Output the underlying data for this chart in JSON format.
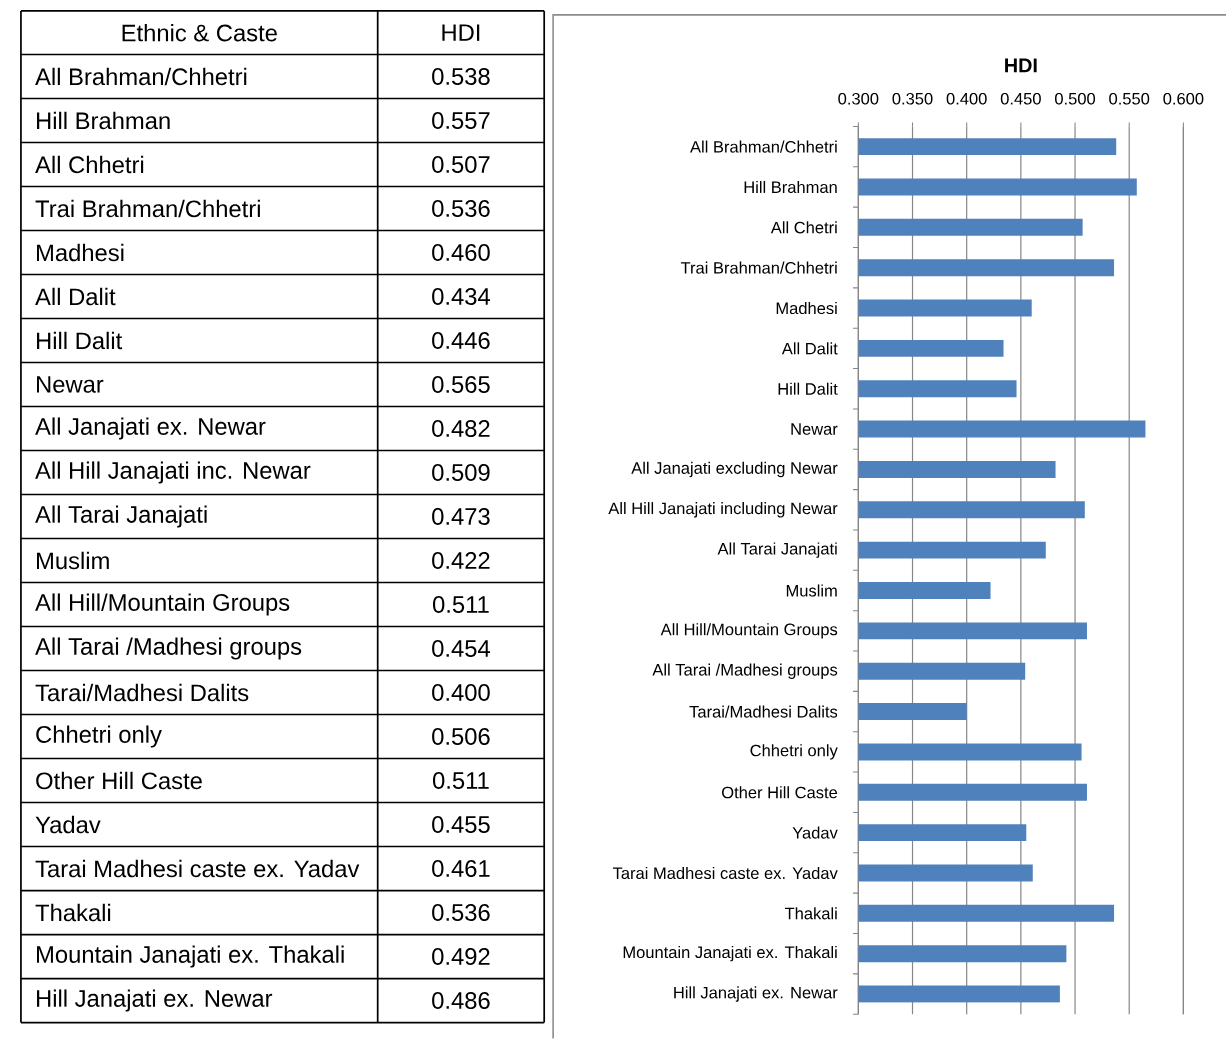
{
  "chart_data": [
    {
      "type": "other",
      "annotations": [
        "Ethnic & Caste",
        "HDI"
      ],
      "categories": [
        "All Brahman/Chhetri",
        "Hill Brahman",
        "All Chhetri",
        "Trai Brahman/Chhetri",
        "Madhesi",
        "All Dalit",
        "Hill Dalit",
        "Newar",
        "All Janajati ex. Newar",
        "All Hill Janajati inc. Newar",
        "All Tarai Janajati",
        "Muslim",
        "All Hill/Mountain Groups",
        "All Tarai /Madhesi groups",
        "Tarai/Madhesi Dalits",
        "Chhetri only",
        "Other Hill Caste",
        "Yadav",
        "Tarai Madhesi caste ex. Yadav",
        "Thakali",
        "Mountain Janajati ex. Thakali",
        "Hill Janajati ex. Newar"
      ],
      "values": [
        0.538,
        0.557,
        0.507,
        0.536,
        0.46,
        0.434,
        0.446,
        0.565,
        0.482,
        0.509,
        0.473,
        0.422,
        0.511,
        0.454,
        0.4,
        0.506,
        0.511,
        0.455,
        0.461,
        0.536,
        0.492,
        0.486
      ],
      "value_labels": [
        "0.538",
        "0.557",
        "0.507",
        "0.536",
        "0.460",
        "0.434",
        "0.446",
        "0.565",
        "0.482",
        "0.509",
        "0.473",
        "0.422",
        "0.511",
        "0.454",
        "0.400",
        "0.506",
        "0.511",
        "0.455",
        "0.461",
        "0.536",
        "0.492",
        "0.486"
      ]
    },
    {
      "type": "bar",
      "orientation": "horizontal",
      "title": "HDI",
      "categories": [
        "All Brahman/Chhetri",
        "Hill Brahman",
        "All Chetri",
        "Trai Brahman/Chhetri",
        "Madhesi",
        "All Dalit",
        "Hill Dalit",
        "Newar",
        "All Janajati excluding Newar",
        "All Hill Janajati including Newar",
        "All Tarai Janajati",
        "Muslim",
        "All Hill/Mountain Groups",
        "All Tarai /Madhesi groups",
        "Tarai/Madhesi Dalits",
        "Chhetri only",
        "Other Hill Caste",
        "Yadav",
        "Tarai Madhesi caste ex. Yadav",
        "Thakali",
        "Mountain Janajati ex. Thakali",
        "Hill Janajati ex. Newar"
      ],
      "values": [
        0.538,
        0.557,
        0.507,
        0.536,
        0.46,
        0.434,
        0.446,
        0.565,
        0.482,
        0.509,
        0.473,
        0.422,
        0.511,
        0.454,
        0.4,
        0.506,
        0.511,
        0.455,
        0.461,
        0.536,
        0.492,
        0.486
      ],
      "color": "#4f81bd",
      "xlim": [
        0.3,
        0.6
      ],
      "xticks": [
        {
          "value": 0.3,
          "label": "0.300"
        },
        {
          "value": 0.35,
          "label": "0.350"
        },
        {
          "value": 0.4,
          "label": "0.400"
        },
        {
          "value": 0.45,
          "label": "0.450"
        },
        {
          "value": 0.5,
          "label": "0.500"
        },
        {
          "value": 0.55,
          "label": "0.550"
        },
        {
          "value": 0.6,
          "label": "0.600"
        }
      ],
      "grid": "x"
    }
  ]
}
